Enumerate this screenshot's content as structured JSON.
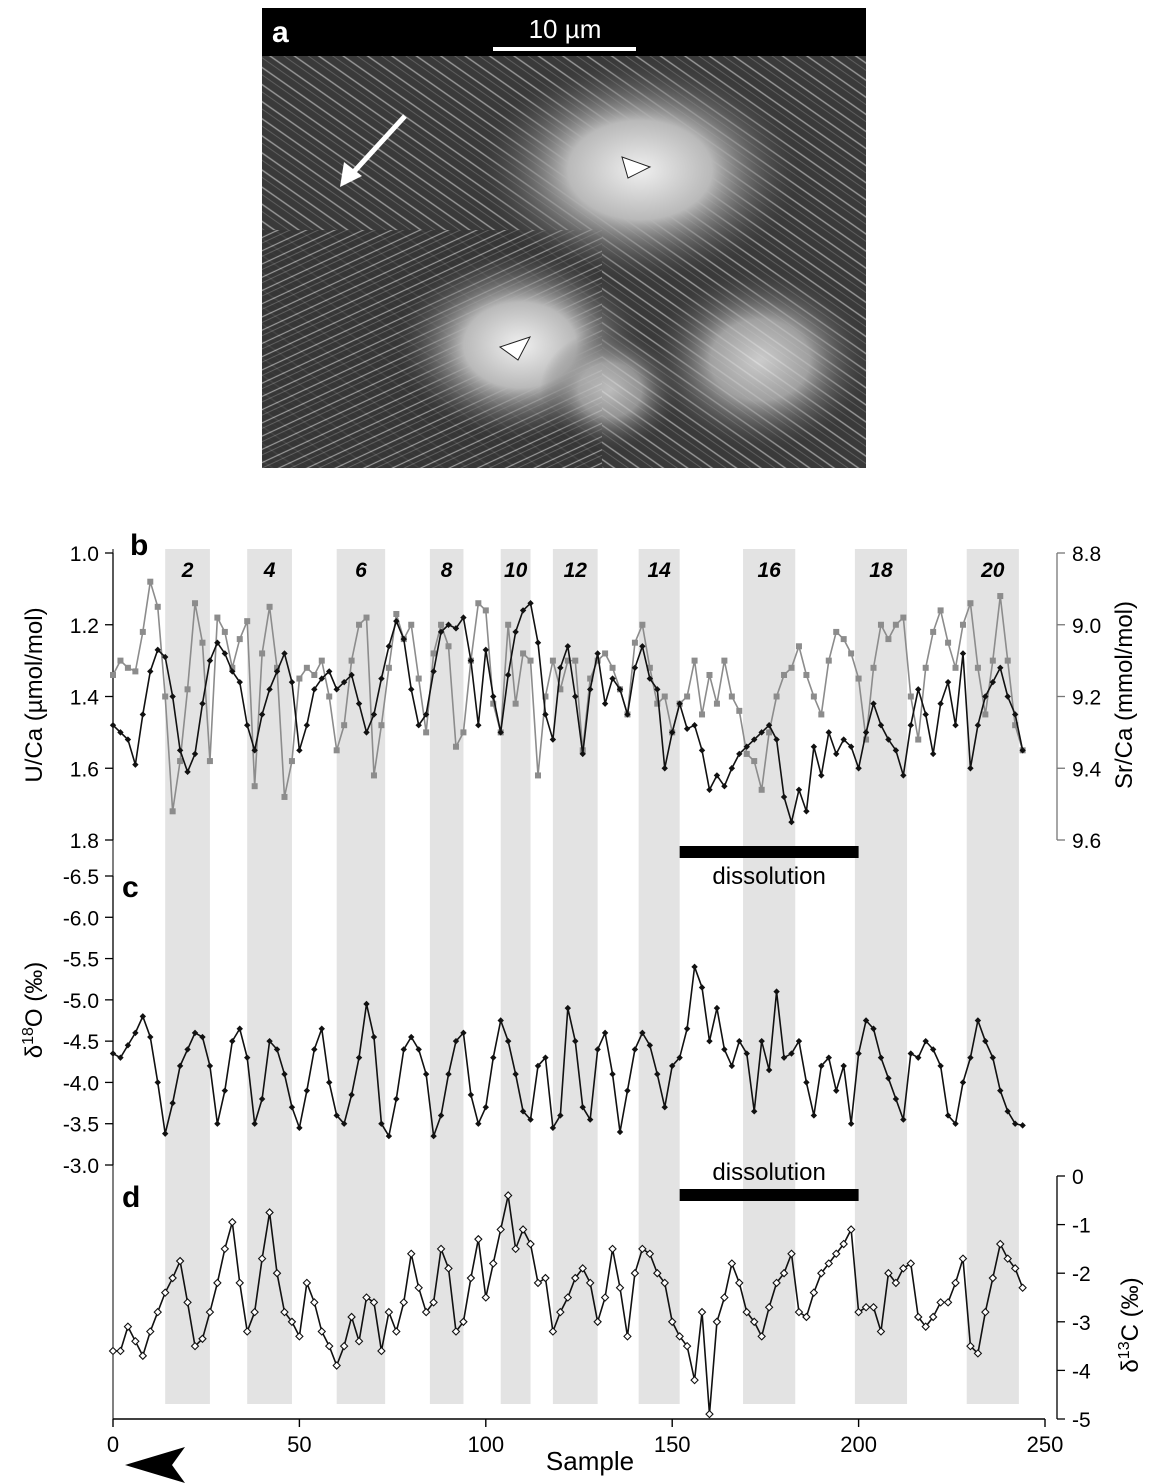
{
  "panel_a": {
    "label": "a",
    "scale_bar_label": "10 µm"
  },
  "shared": {
    "xlabel": "Sample",
    "xlim": [
      0,
      250
    ],
    "xticks": [
      "0",
      "50",
      "100",
      "150",
      "200",
      "250"
    ],
    "shaded_bands": [
      [
        14,
        26
      ],
      [
        36,
        48
      ],
      [
        60,
        73
      ],
      [
        85,
        94
      ],
      [
        104,
        112
      ],
      [
        118,
        130
      ],
      [
        141,
        152
      ],
      [
        169,
        183
      ],
      [
        199,
        213
      ],
      [
        229,
        243
      ]
    ],
    "band_labels": [
      "2",
      "4",
      "6",
      "8",
      "10",
      "12",
      "14",
      "16",
      "18",
      "20"
    ],
    "band_color": "#e3e3e3"
  },
  "dissolution": {
    "label": "dissolution",
    "range": [
      152,
      200
    ]
  },
  "colors": {
    "u_ca": "#111111",
    "sr_ca": "#8c8c8c",
    "d18o": "#111111",
    "d13c": "#111111"
  },
  "chart_data": [
    {
      "panel": "b",
      "type": "line",
      "ylabel": "U/Ca (µmol/mol)",
      "ylabel_right": "Sr/Ca (mmol/mol)",
      "ylim": [
        1.8,
        1.0
      ],
      "yticks": [
        "1.0",
        "1.2",
        "1.4",
        "1.6",
        "1.8"
      ],
      "ylim_right": [
        9.6,
        8.8
      ],
      "yticks_right": [
        "8.8",
        "9.0",
        "9.2",
        "9.4",
        "9.6"
      ],
      "series": [
        {
          "axis": "left",
          "x": [
            0,
            2,
            4,
            6,
            8,
            10,
            12,
            14,
            16,
            18,
            20,
            22,
            24,
            26,
            28,
            30,
            32,
            34,
            36,
            38,
            40,
            42,
            44,
            46,
            48,
            50,
            52,
            54,
            56,
            58,
            60,
            62,
            64,
            66,
            68,
            70,
            72,
            74,
            76,
            78,
            80,
            82,
            84,
            86,
            88,
            90,
            92,
            94,
            96,
            98,
            100,
            102,
            104,
            106,
            108,
            110,
            112,
            114,
            116,
            118,
            120,
            122,
            124,
            126,
            128,
            130,
            132,
            134,
            136,
            138,
            140,
            142,
            144,
            146,
            148,
            150,
            152,
            154,
            156,
            158,
            160,
            162,
            164,
            166,
            168,
            170,
            172,
            174,
            176,
            178,
            180,
            182,
            184,
            186,
            188,
            190,
            192,
            194,
            196,
            198,
            200,
            202,
            204,
            206,
            208,
            210,
            212,
            214,
            216,
            218,
            220,
            222,
            224,
            226,
            228,
            230,
            232,
            234,
            236,
            238,
            240,
            242,
            244
          ],
          "values": [
            1.48,
            1.5,
            1.52,
            1.59,
            1.45,
            1.33,
            1.27,
            1.29,
            1.4,
            1.55,
            1.61,
            1.56,
            1.42,
            1.3,
            1.25,
            1.28,
            1.33,
            1.36,
            1.48,
            1.55,
            1.45,
            1.38,
            1.33,
            1.28,
            1.36,
            1.55,
            1.48,
            1.38,
            1.35,
            1.33,
            1.38,
            1.36,
            1.34,
            1.42,
            1.5,
            1.45,
            1.35,
            1.26,
            1.19,
            1.24,
            1.38,
            1.48,
            1.45,
            1.33,
            1.22,
            1.2,
            1.21,
            1.18,
            1.3,
            1.48,
            1.27,
            1.4,
            1.5,
            1.34,
            1.22,
            1.16,
            1.14,
            1.25,
            1.45,
            1.52,
            1.32,
            1.26,
            1.4,
            1.56,
            1.38,
            1.28,
            1.42,
            1.35,
            1.38,
            1.45,
            1.32,
            1.26,
            1.35,
            1.38,
            1.6,
            1.5,
            1.42,
            1.49,
            1.48,
            1.55,
            1.66,
            1.62,
            1.65,
            1.6,
            1.56,
            1.54,
            1.52,
            1.5,
            1.48,
            1.52,
            1.68,
            1.75,
            1.66,
            1.72,
            1.54,
            1.62,
            1.5,
            1.56,
            1.52,
            1.54,
            1.6,
            1.5,
            1.42,
            1.48,
            1.52,
            1.55,
            1.62,
            1.48,
            1.38,
            1.45,
            1.56,
            1.42,
            1.36,
            1.48,
            1.28,
            1.6,
            1.48,
            1.4,
            1.36,
            1.32,
            1.4,
            1.45,
            1.55
          ]
        },
        {
          "axis": "right",
          "x": [
            0,
            2,
            4,
            6,
            8,
            10,
            12,
            14,
            16,
            18,
            20,
            22,
            24,
            26,
            28,
            30,
            32,
            34,
            36,
            38,
            40,
            42,
            44,
            46,
            48,
            50,
            52,
            54,
            56,
            58,
            60,
            62,
            64,
            66,
            68,
            70,
            72,
            74,
            76,
            78,
            80,
            82,
            84,
            86,
            88,
            90,
            92,
            94,
            96,
            98,
            100,
            102,
            104,
            106,
            108,
            110,
            112,
            114,
            116,
            118,
            120,
            122,
            124,
            126,
            128,
            130,
            132,
            134,
            136,
            138,
            140,
            142,
            144,
            146,
            148,
            150,
            152,
            154,
            156,
            158,
            160,
            162,
            164,
            166,
            168,
            170,
            172,
            174,
            176,
            178,
            180,
            182,
            184,
            186,
            188,
            190,
            192,
            194,
            196,
            198,
            200,
            202,
            204,
            206,
            208,
            210,
            212,
            214,
            216,
            218,
            220,
            222,
            224,
            226,
            228,
            230,
            232,
            234,
            236,
            238,
            240,
            242,
            244
          ],
          "values": [
            9.14,
            9.1,
            9.12,
            9.13,
            9.02,
            8.88,
            8.95,
            9.2,
            9.52,
            9.38,
            9.18,
            8.94,
            9.05,
            9.38,
            8.98,
            9.02,
            9.12,
            9.04,
            8.99,
            9.45,
            9.08,
            8.95,
            9.12,
            9.48,
            9.38,
            9.15,
            9.12,
            9.14,
            9.1,
            9.2,
            9.35,
            9.28,
            9.1,
            9.0,
            8.98,
            9.42,
            9.28,
            9.12,
            8.97,
            9.04,
            9.0,
            9.15,
            9.3,
            9.08,
            9.0,
            9.06,
            9.34,
            9.3,
            9.1,
            8.94,
            8.96,
            9.22,
            9.3,
            9.0,
            9.22,
            9.08,
            9.1,
            9.42,
            9.2,
            9.1,
            9.18,
            9.1,
            9.1,
            9.35,
            9.15,
            9.1,
            9.08,
            9.12,
            9.18,
            9.25,
            9.05,
            9.0,
            9.12,
            9.22,
            9.2,
            9.3,
            9.22,
            9.2,
            9.1,
            9.25,
            9.14,
            9.22,
            9.1,
            9.2,
            9.24,
            9.36,
            9.38,
            9.46,
            9.3,
            9.2,
            9.14,
            9.12,
            9.06,
            9.14,
            9.2,
            9.25,
            9.1,
            9.02,
            9.04,
            9.08,
            9.15,
            9.32,
            9.12,
            9.0,
            9.04,
            9.0,
            8.98,
            9.2,
            9.32,
            9.12,
            9.02,
            8.96,
            9.05,
            9.12,
            9.0,
            8.94,
            9.12,
            9.25,
            9.1,
            8.92,
            9.1,
            9.28,
            9.35
          ]
        }
      ]
    },
    {
      "panel": "c",
      "type": "line",
      "ylabel": "δ18O (‰)",
      "ylim": [
        -3.0,
        -6.5
      ],
      "yticks": [
        "-6.5",
        "-6.0",
        "-5.5",
        "-5.0",
        "-4.5",
        "-4.0",
        "-3.5",
        "-3.0"
      ],
      "series": [
        {
          "x": [
            0,
            2,
            4,
            6,
            8,
            10,
            12,
            14,
            16,
            18,
            20,
            22,
            24,
            26,
            28,
            30,
            32,
            34,
            36,
            38,
            40,
            42,
            44,
            46,
            48,
            50,
            52,
            54,
            56,
            58,
            60,
            62,
            64,
            66,
            68,
            70,
            72,
            74,
            76,
            78,
            80,
            82,
            84,
            86,
            88,
            90,
            92,
            94,
            96,
            98,
            100,
            102,
            104,
            106,
            108,
            110,
            112,
            114,
            116,
            118,
            120,
            122,
            124,
            126,
            128,
            130,
            132,
            134,
            136,
            138,
            140,
            142,
            144,
            146,
            148,
            150,
            152,
            154,
            156,
            158,
            160,
            162,
            164,
            166,
            168,
            170,
            172,
            174,
            176,
            178,
            180,
            182,
            184,
            186,
            188,
            190,
            192,
            194,
            196,
            198,
            200,
            202,
            204,
            206,
            208,
            210,
            212,
            214,
            216,
            218,
            220,
            222,
            224,
            226,
            228,
            230,
            232,
            234,
            236,
            238,
            240,
            242,
            244
          ],
          "values": [
            -4.35,
            -4.3,
            -4.45,
            -4.6,
            -4.8,
            -4.55,
            -4.0,
            -3.38,
            -3.75,
            -4.2,
            -4.4,
            -4.6,
            -4.55,
            -4.2,
            -3.5,
            -3.9,
            -4.5,
            -4.65,
            -4.3,
            -3.5,
            -3.8,
            -4.5,
            -4.4,
            -4.1,
            -3.7,
            -3.45,
            -3.9,
            -4.4,
            -4.65,
            -4.0,
            -3.6,
            -3.5,
            -3.85,
            -4.3,
            -4.95,
            -4.55,
            -3.5,
            -3.35,
            -3.8,
            -4.4,
            -4.55,
            -4.4,
            -4.1,
            -3.35,
            -3.6,
            -4.1,
            -4.5,
            -4.6,
            -3.85,
            -3.5,
            -3.7,
            -4.3,
            -4.75,
            -4.5,
            -4.1,
            -3.65,
            -3.55,
            -4.2,
            -4.3,
            -3.45,
            -3.6,
            -4.9,
            -4.5,
            -3.7,
            -3.55,
            -4.4,
            -4.6,
            -4.1,
            -3.4,
            -3.9,
            -4.4,
            -4.6,
            -4.45,
            -4.1,
            -3.7,
            -4.2,
            -4.3,
            -4.65,
            -5.4,
            -5.15,
            -4.5,
            -4.9,
            -4.4,
            -4.2,
            -4.5,
            -4.35,
            -3.65,
            -4.5,
            -4.15,
            -5.1,
            -4.3,
            -4.35,
            -4.5,
            -4.0,
            -3.6,
            -4.2,
            -4.3,
            -3.9,
            -4.2,
            -3.5,
            -4.35,
            -4.75,
            -4.65,
            -4.3,
            -4.05,
            -3.8,
            -3.55,
            -4.35,
            -4.3,
            -4.5,
            -4.4,
            -4.2,
            -3.6,
            -3.5,
            -4.0,
            -4.3,
            -4.75,
            -4.5,
            -4.3,
            -3.9,
            -3.65,
            -3.5,
            -3.48
          ]
        }
      ]
    },
    {
      "panel": "d",
      "type": "line",
      "ylabel": "δ13C (‰)",
      "ylim": [
        -5,
        0
      ],
      "yticks": [
        "0",
        "-1",
        "-2",
        "-3",
        "-4",
        "-5"
      ],
      "series": [
        {
          "x": [
            0,
            2,
            4,
            6,
            8,
            10,
            12,
            14,
            16,
            18,
            20,
            22,
            24,
            26,
            28,
            30,
            32,
            34,
            36,
            38,
            40,
            42,
            44,
            46,
            48,
            50,
            52,
            54,
            56,
            58,
            60,
            62,
            64,
            66,
            68,
            70,
            72,
            74,
            76,
            78,
            80,
            82,
            84,
            86,
            88,
            90,
            92,
            94,
            96,
            98,
            100,
            102,
            104,
            106,
            108,
            110,
            112,
            114,
            116,
            118,
            120,
            122,
            124,
            126,
            128,
            130,
            132,
            134,
            136,
            138,
            140,
            142,
            144,
            146,
            148,
            150,
            152,
            154,
            156,
            158,
            160,
            162,
            164,
            166,
            168,
            170,
            172,
            174,
            176,
            178,
            180,
            182,
            184,
            186,
            188,
            190,
            192,
            194,
            196,
            198,
            200,
            202,
            204,
            206,
            208,
            210,
            212,
            214,
            216,
            218,
            220,
            222,
            224,
            226,
            228,
            230,
            232,
            234,
            236,
            238,
            240,
            242,
            244
          ],
          "values": [
            -3.6,
            -3.6,
            -3.1,
            -3.4,
            -3.7,
            -3.2,
            -2.8,
            -2.4,
            -2.1,
            -1.75,
            -2.6,
            -3.5,
            -3.35,
            -2.8,
            -2.2,
            -1.5,
            -0.95,
            -2.2,
            -3.2,
            -2.8,
            -1.7,
            -0.75,
            -2.0,
            -2.8,
            -3.0,
            -3.3,
            -2.2,
            -2.6,
            -3.2,
            -3.5,
            -3.9,
            -3.5,
            -2.9,
            -3.4,
            -2.5,
            -2.6,
            -3.6,
            -2.8,
            -3.2,
            -2.6,
            -1.6,
            -2.3,
            -2.8,
            -2.6,
            -1.5,
            -1.9,
            -3.2,
            -3.0,
            -2.1,
            -1.3,
            -2.5,
            -1.8,
            -1.1,
            -0.4,
            -1.5,
            -1.1,
            -1.4,
            -2.2,
            -2.1,
            -3.2,
            -2.8,
            -2.5,
            -2.1,
            -1.9,
            -2.2,
            -3.0,
            -2.5,
            -1.5,
            -2.3,
            -3.3,
            -2.0,
            -1.5,
            -1.6,
            -2.0,
            -2.2,
            -3.0,
            -3.3,
            -3.5,
            -4.2,
            -2.8,
            -4.9,
            -3.0,
            -2.5,
            -1.8,
            -2.2,
            -2.8,
            -3.0,
            -3.3,
            -2.7,
            -2.2,
            -2.0,
            -1.6,
            -2.8,
            -2.9,
            -2.4,
            -2.0,
            -1.8,
            -1.6,
            -1.4,
            -1.1,
            -2.8,
            -2.7,
            -2.7,
            -3.2,
            -2.0,
            -2.2,
            -1.9,
            -1.8,
            -2.9,
            -3.1,
            -2.9,
            -2.6,
            -2.6,
            -2.2,
            -1.7,
            -3.5,
            -3.65,
            -2.8,
            -2.1,
            -1.4,
            -1.7,
            -1.9,
            -2.3
          ]
        }
      ]
    }
  ]
}
